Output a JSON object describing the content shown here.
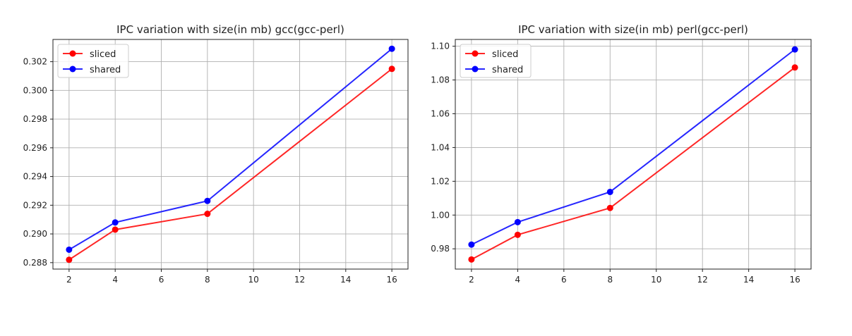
{
  "chart_data": [
    {
      "type": "line",
      "title": "IPC variation with size(in mb) gcc(gcc-perl)",
      "xlabel": "",
      "ylabel": "",
      "x": [
        2,
        4,
        8,
        16
      ],
      "xlim": [
        1.3,
        16.7
      ],
      "ylim": [
        0.28755,
        0.30355
      ],
      "xticks": [
        2,
        4,
        6,
        8,
        10,
        12,
        14,
        16
      ],
      "yticks": [
        0.288,
        0.29,
        0.292,
        0.294,
        0.296,
        0.298,
        0.3,
        0.302
      ],
      "ytick_labels": [
        "0.288",
        "0.290",
        "0.292",
        "0.294",
        "0.296",
        "0.298",
        "0.300",
        "0.302"
      ],
      "grid": true,
      "legend_position": "top-left",
      "series": [
        {
          "name": "sliced",
          "color": "#ff0000",
          "values": [
            0.2882,
            0.2903,
            0.2914,
            0.3015
          ]
        },
        {
          "name": "shared",
          "color": "#0000ff",
          "values": [
            0.2889,
            0.2908,
            0.2923,
            0.3029
          ]
        }
      ]
    },
    {
      "type": "line",
      "title": "IPC variation with size(in mb) perl(gcc-perl)",
      "xlabel": "",
      "ylabel": "",
      "x": [
        2,
        4,
        8,
        16
      ],
      "xlim": [
        1.3,
        16.7
      ],
      "ylim": [
        0.968,
        1.104
      ],
      "xticks": [
        2,
        4,
        6,
        8,
        10,
        12,
        14,
        16
      ],
      "yticks": [
        0.98,
        1.0,
        1.02,
        1.04,
        1.06,
        1.08,
        1.1
      ],
      "ytick_labels": [
        "0.98",
        "1.00",
        "1.02",
        "1.04",
        "1.06",
        "1.08",
        "1.10"
      ],
      "grid": true,
      "legend_position": "top-left",
      "series": [
        {
          "name": "sliced",
          "color": "#ff0000",
          "values": [
            0.9737,
            0.9883,
            1.0042,
            1.0874
          ]
        },
        {
          "name": "shared",
          "color": "#0000ff",
          "values": [
            0.9825,
            0.9958,
            1.0137,
            1.0981
          ]
        }
      ]
    }
  ]
}
